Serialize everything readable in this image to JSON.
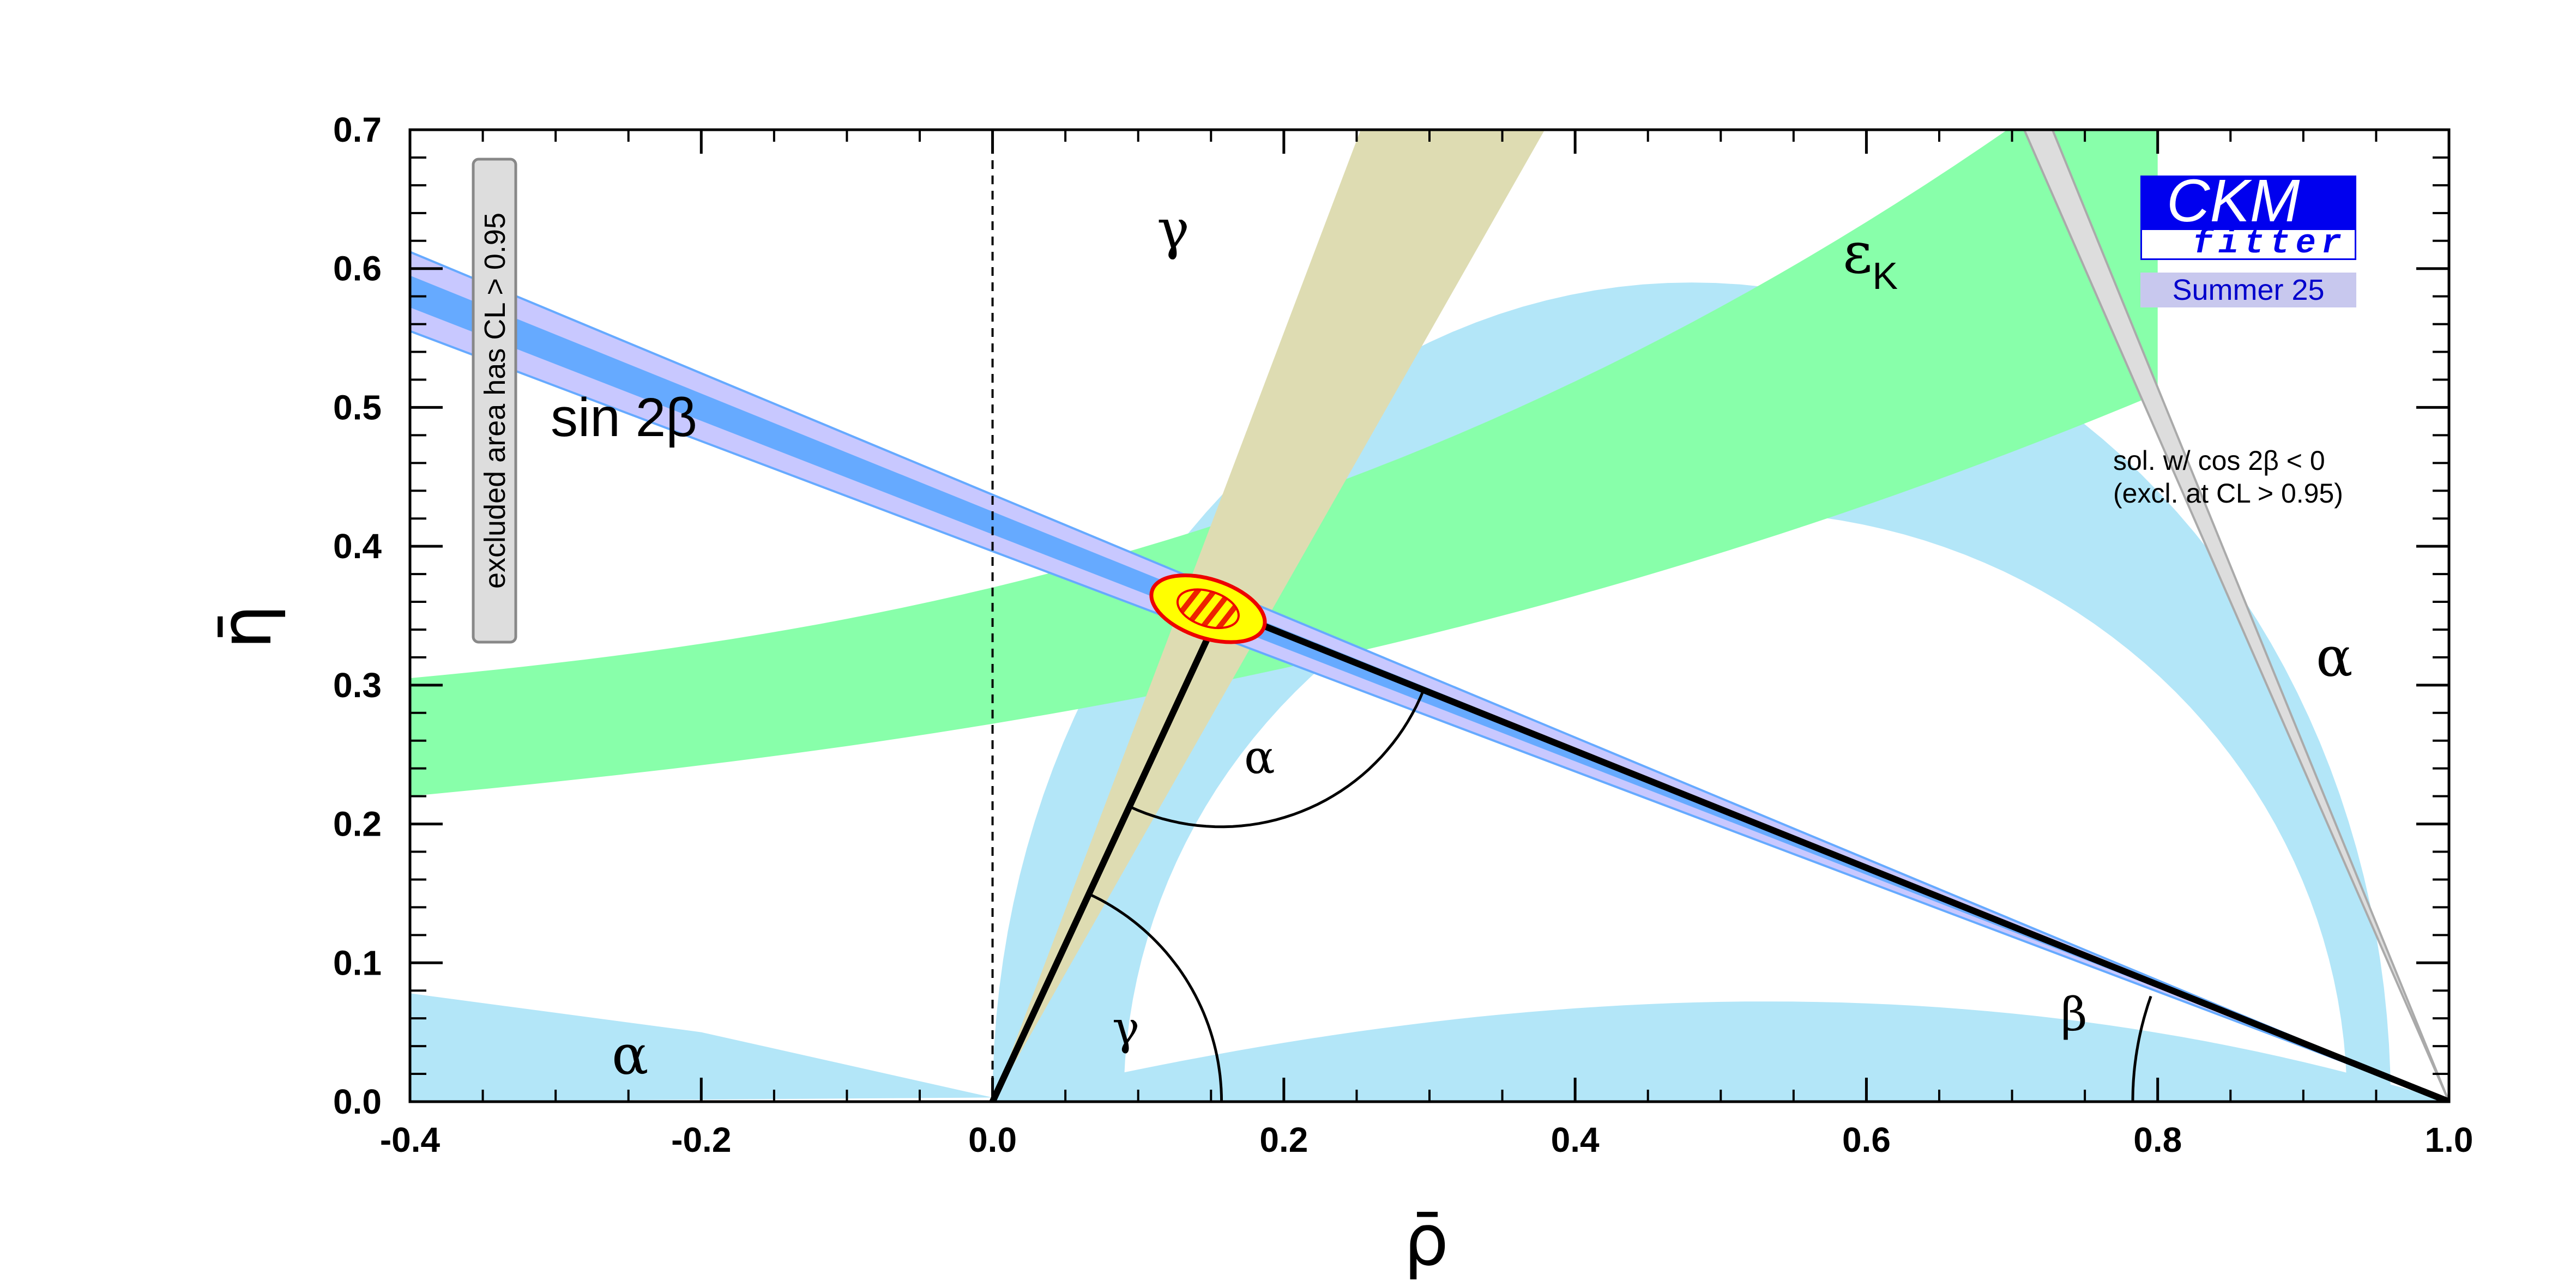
{
  "chart_data": {
    "type": "scatter",
    "xlabel": "ρ̄",
    "ylabel": "η̄",
    "xlim": [
      -0.4,
      1.0
    ],
    "ylim": [
      0.0,
      0.7
    ],
    "x_ticks": [
      "-0.4",
      "-0.2",
      "0.0",
      "0.2",
      "0.4",
      "0.6",
      "0.8",
      "1.0"
    ],
    "y_ticks": [
      "0.0",
      "0.1",
      "0.2",
      "0.3",
      "0.4",
      "0.5",
      "0.6",
      "0.7"
    ],
    "apex": [
      0.157,
      0.355
    ],
    "constraints": [
      {
        "name": "sin 2β",
        "color": "#66aaff",
        "description": "band through (1,0)"
      },
      {
        "name": "εK",
        "color": "#88ffaa",
        "description": "hyperbolic band"
      },
      {
        "name": "γ",
        "color": "#ddddb3",
        "description": "wedge from origin"
      },
      {
        "name": "α",
        "color": "#b3e6f8",
        "description": "annular bands"
      }
    ],
    "labels": {
      "sin2beta": "sin 2β",
      "epsilon": "ε",
      "epsilon_sub": "K",
      "gamma_top": "γ",
      "gamma_tri": "γ",
      "alpha_tri": "α",
      "beta_tri": "β",
      "alpha_left": "α",
      "alpha_right": "α",
      "sol_line1": "sol. w/ cos 2β < 0",
      "sol_line2": "(excl. at CL > 0.95)",
      "excluded": "excluded area has CL > 0.95"
    }
  },
  "logo": {
    "name": "CKM",
    "sub": "fitter",
    "season": "Summer 25"
  },
  "colors": {
    "alpha_band": "#b3e6f8",
    "epsk_band": "#88ffaa",
    "gamma_band": "#dedcb2",
    "sin2b_outer": "#c8c8ff",
    "sin2b_inner": "#66aaff",
    "apex_fill": "#ffff00",
    "apex_border": "#ee0000",
    "logo_blue": "#0000ee"
  }
}
